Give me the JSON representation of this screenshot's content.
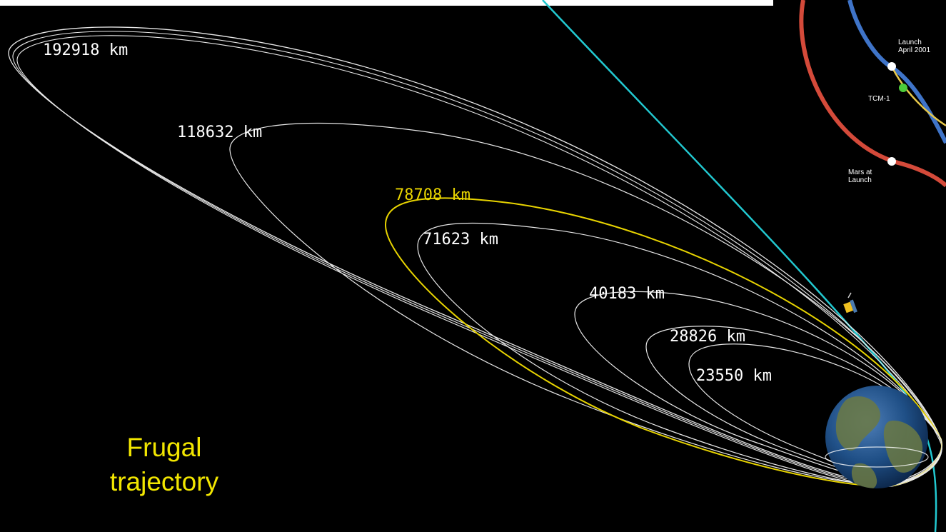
{
  "orbit_labels": [
    {
      "text": "192918 km",
      "highlight": false
    },
    {
      "text": "118632 km",
      "highlight": false
    },
    {
      "text": "78708 km",
      "highlight": true
    },
    {
      "text": "71623 km",
      "highlight": false
    },
    {
      "text": "40183 km",
      "highlight": false
    },
    {
      "text": "28826 km",
      "highlight": false
    },
    {
      "text": "23550 km",
      "highlight": false
    }
  ],
  "inset": {
    "launch_label_line1": "Launch",
    "launch_label_line2": "April 2001",
    "tcm_label": "TCM-1",
    "mars_label_line1": "Mars at",
    "mars_label_line2": "Launch"
  },
  "caption": {
    "line1": "Frugal",
    "line2": "trajectory"
  },
  "colors": {
    "background": "#000000",
    "orbit": "#e8e8e8",
    "highlight_orbit": "#e8d400",
    "transfer_path": "#22c8d0",
    "caption": "#f2e600",
    "mars_orbit": "#d44a3a",
    "earth_orbit": "#3f74c8",
    "inset_path": "#e6c84a",
    "tcm_point": "#4ccc3a"
  },
  "icons": [
    "earth-icon",
    "spacecraft-icon"
  ]
}
